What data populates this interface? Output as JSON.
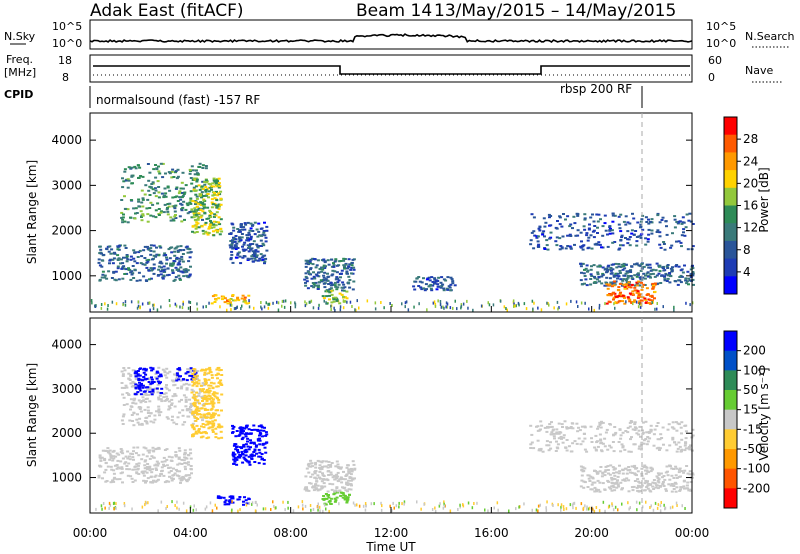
{
  "header": {
    "station": "Adak East (fitACF)",
    "beam": "Beam 14",
    "date_range": "13/May/2015 – 14/May/2015"
  },
  "top_panels": {
    "nsky_label": "N.Sky",
    "nsky_ticks": [
      "10^5",
      "10^0"
    ],
    "nsearch_label": "N.Search",
    "nsearch_ticks": [
      "10^5",
      "10^0"
    ],
    "freq_label_1": "Freq.",
    "freq_label_2": "[MHz]",
    "freq_ticks": [
      "18",
      "8"
    ],
    "nave_label": "Nave",
    "nave_ticks": [
      "60",
      "0"
    ],
    "cpid_label": "CPID",
    "cpid_segments": [
      {
        "label": "normalsound (fast) -157 RF",
        "start_hour": 0
      },
      {
        "label": "rbsp 200 RF",
        "start_hour": 22
      }
    ]
  },
  "colorbars": {
    "power": {
      "label": "Power [dB]",
      "ticks": [
        "28",
        "24",
        "20",
        "16",
        "12",
        "8",
        "4"
      ],
      "colors": [
        "#ff0000",
        "#ff5a00",
        "#ff9900",
        "#ffd200",
        "#92c83c",
        "#2e8b57",
        "#3a7a7a",
        "#2a5599",
        "#1e3cb4",
        "#0000ff"
      ]
    },
    "velocity": {
      "label": "Velocity [m s⁻¹]",
      "ticks": [
        "200",
        "100",
        "50",
        "15",
        "-15",
        "-50",
        "-100",
        "-200"
      ],
      "colors": [
        "#0000ff",
        "#0050c8",
        "#2e8b57",
        "#66cc33",
        "#c8c8c8",
        "#ffcc33",
        "#ff9900",
        "#ff5500",
        "#ff0000"
      ]
    }
  },
  "chart_data": [
    {
      "type": "heatmap",
      "name": "power",
      "ylabel": "Slant Range [km]",
      "ylim": [
        200,
        4600
      ],
      "yticks": [
        "4000",
        "3000",
        "2000",
        "1000"
      ],
      "xlim_hours": [
        0,
        24
      ],
      "xlabel": "",
      "regions": [
        {
          "t0": 1.2,
          "t1": 4.6,
          "r0": 2200,
          "r1": 3500,
          "level": 12
        },
        {
          "t0": 0.3,
          "t1": 4.0,
          "r0": 900,
          "r1": 1700,
          "level": 8
        },
        {
          "t0": 4.0,
          "t1": 5.2,
          "r0": 1900,
          "r1": 3200,
          "level": 16
        },
        {
          "t0": 5.5,
          "t1": 7.0,
          "r0": 1300,
          "r1": 2200,
          "level": 6
        },
        {
          "t0": 4.8,
          "t1": 6.3,
          "r0": 400,
          "r1": 600,
          "level": 20
        },
        {
          "t0": 8.5,
          "t1": 10.5,
          "r0": 700,
          "r1": 1400,
          "level": 8
        },
        {
          "t0": 9.2,
          "t1": 10.2,
          "r0": 400,
          "r1": 700,
          "level": 16
        },
        {
          "t0": 12.8,
          "t1": 14.5,
          "r0": 700,
          "r1": 1000,
          "level": 6
        },
        {
          "t0": 17.5,
          "t1": 24.0,
          "r0": 1600,
          "r1": 2400,
          "level": 6
        },
        {
          "t0": 19.5,
          "t1": 24.0,
          "r0": 800,
          "r1": 1300,
          "level": 8
        },
        {
          "t0": 20.5,
          "t1": 22.5,
          "r0": 400,
          "r1": 900,
          "level": 24
        }
      ]
    },
    {
      "type": "heatmap",
      "name": "velocity",
      "ylabel": "Slant Range [km]",
      "ylim": [
        200,
        4600
      ],
      "yticks": [
        "4000",
        "3000",
        "2000",
        "1000"
      ],
      "xlim_hours": [
        0,
        24
      ],
      "xlabel": "Time UT",
      "xticks": [
        "00:00",
        "04:00",
        "08:00",
        "12:00",
        "16:00",
        "20:00",
        "00:00"
      ],
      "regions": [
        {
          "t0": 1.2,
          "t1": 4.6,
          "r0": 2200,
          "r1": 3500,
          "vel": -15
        },
        {
          "t0": 1.7,
          "t1": 2.8,
          "r0": 2900,
          "r1": 3500,
          "vel": 200
        },
        {
          "t0": 3.4,
          "t1": 4.2,
          "r0": 3200,
          "r1": 3500,
          "vel": 200
        },
        {
          "t0": 4.0,
          "t1": 5.2,
          "r0": 1900,
          "r1": 3500,
          "vel": -50
        },
        {
          "t0": 0.3,
          "t1": 4.0,
          "r0": 900,
          "r1": 1700,
          "vel": -15
        },
        {
          "t0": 5.6,
          "t1": 7.0,
          "r0": 1300,
          "r1": 2200,
          "vel": 200
        },
        {
          "t0": 5.0,
          "t1": 6.3,
          "r0": 400,
          "r1": 600,
          "vel": 200
        },
        {
          "t0": 9.2,
          "t1": 10.3,
          "r0": 400,
          "r1": 700,
          "vel": 50
        },
        {
          "t0": 8.5,
          "t1": 10.5,
          "r0": 700,
          "r1": 1400,
          "vel": -15
        },
        {
          "t0": 17.5,
          "t1": 24.0,
          "r0": 1600,
          "r1": 2300,
          "vel": -15
        },
        {
          "t0": 19.5,
          "t1": 24.0,
          "r0": 700,
          "r1": 1300,
          "vel": -15
        }
      ]
    }
  ]
}
